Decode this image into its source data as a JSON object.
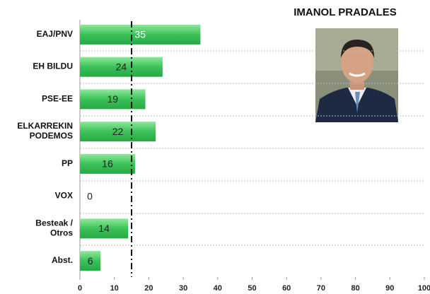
{
  "chart_data": {
    "type": "bar",
    "orientation": "horizontal",
    "title": "IMANOL PRADALES",
    "categories": [
      "EAJ/PNV",
      "EH BILDU",
      "PSE-EE",
      "ELKARREKIN\nPODEMOS",
      "PP",
      "VOX",
      "Besteak /\nOtros",
      "Abst."
    ],
    "values": [
      35,
      24,
      19,
      22,
      16,
      0,
      14,
      6
    ],
    "label_colors": [
      "#ffffff",
      "#222222",
      "#222222",
      "#222222",
      "#222222",
      "#222222",
      "#222222",
      "#222222"
    ],
    "color": "#3cc25a",
    "xlim": [
      0,
      100
    ],
    "xticks": [
      0,
      10,
      20,
      30,
      40,
      50,
      60,
      70,
      80,
      90,
      100
    ],
    "reference_value": 15
  }
}
